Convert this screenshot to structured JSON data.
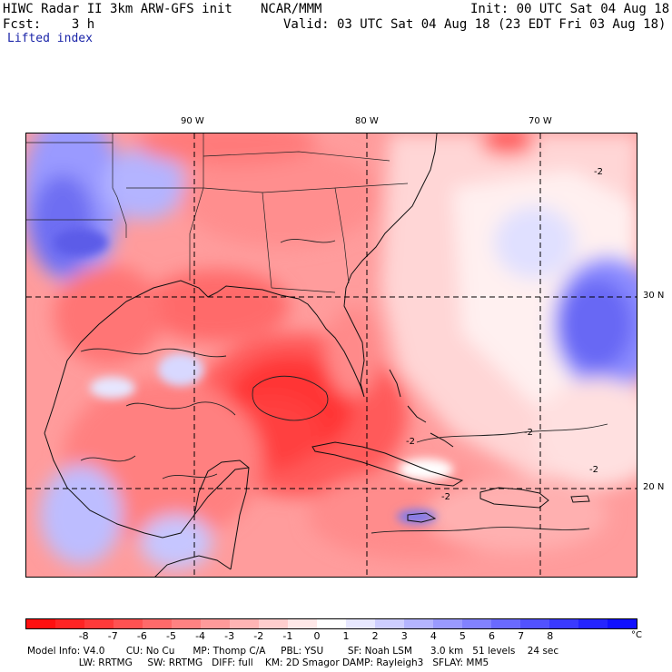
{
  "header": {
    "line1_left": "HIWC Radar II 3km ARW-GFS init",
    "line1_mid": "NCAR/MMM",
    "line1_right": "Init: 00 UTC Sat 04 Aug 18",
    "line2_left": "Fcst:    3 h",
    "line2_right": "Valid: 03 UTC Sat 04 Aug 18 (23 EDT Fri 03 Aug 18)",
    "field": "Lifted index"
  },
  "map": {
    "lon_labels": [
      "90 W",
      "80 W",
      "70 W"
    ],
    "lat_labels": [
      "30 N",
      "20 N"
    ],
    "contour_labels": [
      "-2",
      "-2",
      "-2",
      "-2",
      "-2"
    ]
  },
  "colorbar": {
    "ticks": [
      "-8",
      "-7",
      "-6",
      "-5",
      "-4",
      "-3",
      "-2",
      "-1",
      "0",
      "1",
      "2",
      "3",
      "4",
      "5",
      "6",
      "7",
      "8"
    ],
    "unit": "°C",
    "colors": [
      "#ff1010",
      "#ff2424",
      "#ff3a3a",
      "#ff5252",
      "#ff6a6a",
      "#ff8282",
      "#ff9a9a",
      "#ffb4b4",
      "#ffcece",
      "#ffe8e8",
      "#ffffff",
      "#e8e8ff",
      "#ceceff",
      "#b4b4ff",
      "#9a9aff",
      "#8282ff",
      "#6a6aff",
      "#5252ff",
      "#3a3aff",
      "#2424ff",
      "#1010ff"
    ]
  },
  "footer": {
    "line1": "Model Info: V4.0       CU: No Cu      MP: Thomp C/A     PBL: YSU        SF: Noah LSM      3.0 km   51 levels    24 sec",
    "line2": "                 LW: RRTMG     SW: RRTMG   DIFF: full    KM: 2D Smagor DAMP: Rayleigh3   SFLAY: MM5"
  }
}
